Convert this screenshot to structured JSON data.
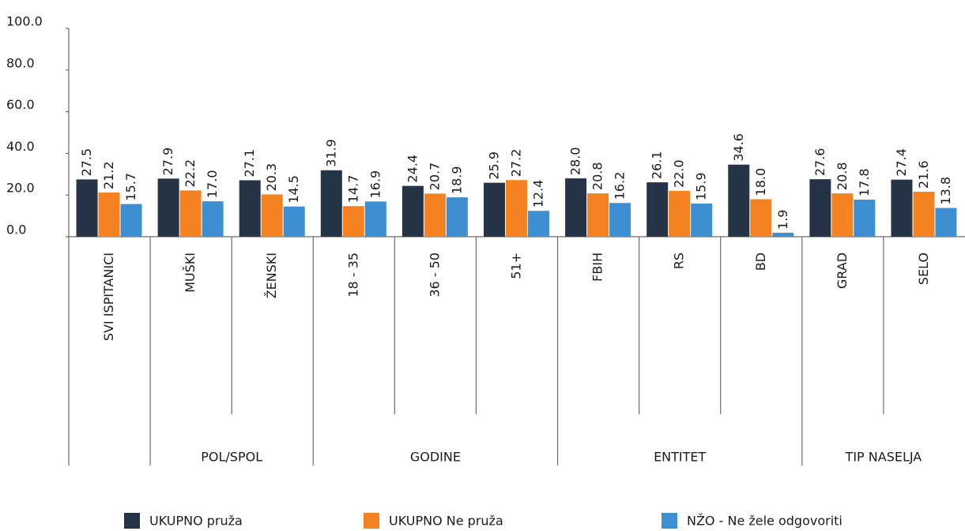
{
  "chart_data": {
    "type": "bar",
    "categories": [
      "SVI ISPITANICI",
      "MUŠKI",
      "ŽENSKI",
      "18 - 35",
      "36 - 50",
      "51+",
      "FBIH",
      "RS",
      "BD",
      "GRAD",
      "SELO"
    ],
    "groups": [
      {
        "name": "POL/SPOL",
        "categories": [
          "MUŠKI",
          "ŽENSKI"
        ]
      },
      {
        "name": "GODINE",
        "categories": [
          "18 - 35",
          "36 - 50",
          "51+"
        ]
      },
      {
        "name": "ENTITET",
        "categories": [
          "FBIH",
          "RS",
          "BD"
        ]
      },
      {
        "name": "TIP NASELJA",
        "categories": [
          "GRAD",
          "SELO"
        ]
      }
    ],
    "series": [
      {
        "name": "UKUPNO pruža",
        "color": "#253447",
        "values": [
          27.5,
          27.9,
          27.1,
          31.9,
          24.4,
          25.9,
          28.0,
          26.1,
          34.6,
          27.6,
          27.4
        ],
        "value_labels": [
          "27.5",
          "27.9",
          "27.1",
          "31.9",
          "24.4",
          "25.9",
          "28.0",
          "26.1",
          "34.6",
          "27.6",
          "27.4"
        ]
      },
      {
        "name": "UKUPNO Ne pruža",
        "color": "#f58220",
        "values": [
          21.2,
          22.2,
          20.3,
          14.7,
          20.7,
          27.2,
          20.8,
          22.0,
          18.0,
          20.8,
          21.6
        ],
        "value_labels": [
          "21.2",
          "22.2",
          "20.3",
          "14.7",
          "20.7",
          "27.2",
          "20.8",
          "22.0",
          "18.0",
          "20.8",
          "21.6"
        ]
      },
      {
        "name": "NŽO - Ne žele odgovoriti",
        "color": "#3d8fd1",
        "values": [
          15.7,
          17.0,
          14.5,
          16.9,
          18.9,
          12.4,
          16.2,
          15.9,
          1.9,
          17.8,
          13.8
        ],
        "value_labels": [
          "15.7",
          "17.0",
          "14.5",
          "16.9",
          "18.9",
          "12.4",
          "16.2",
          "15.9",
          "1.9",
          "17.8",
          "13.8"
        ]
      }
    ],
    "ylim": [
      0,
      100
    ],
    "yticks": [
      {
        "value": 0,
        "label": "0.0"
      },
      {
        "value": 20,
        "label": "20.0"
      },
      {
        "value": 40,
        "label": "40.0"
      },
      {
        "value": 60,
        "label": "60.0"
      },
      {
        "value": 80,
        "label": "80.0"
      },
      {
        "value": 100,
        "label": "100.0"
      }
    ],
    "legend": "bottom"
  }
}
